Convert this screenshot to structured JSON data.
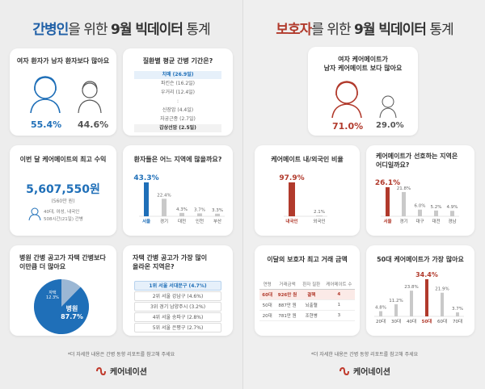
{
  "left": {
    "title_hl": "간병인",
    "title_mid": "을 위한 ",
    "title_bold": "9월 빅데이터",
    "title_end": " 통계",
    "gender_card": {
      "title": "여자 환자가 남자 환자보다 많아요",
      "female_pct": "55.4%",
      "male_pct": "44.6%"
    },
    "period_card": {
      "title": "질환별 평균 간병 기간은?",
      "items": [
        "치매 (26.9일)",
        "파킨슨 (16.2일)",
        "우거리 (12.4일)",
        ":",
        "신장암 (4.4일)",
        "자궁근종 (2.7일)",
        "갑상선암 (2.5일)"
      ]
    },
    "income_card": {
      "title": "이번 달 케어메이트의 최고 수익",
      "amount": "5,607,550원",
      "sub": "(560만 원)",
      "note1": "40대, 여성, 내국인",
      "note2": "508시간(21일) 간병"
    },
    "region_card": {
      "title": "환자들은 어느 지역에 많을까요?",
      "values": [
        43.3,
        22.4,
        4.3,
        3.7,
        3.3
      ],
      "value_labels": [
        "43.3%",
        "22.4%",
        "4.3%",
        "3.7%",
        "3.3%"
      ],
      "categories": [
        "서울",
        "경기",
        "대전",
        "인천",
        "부산"
      ]
    },
    "hospital_card": {
      "title_1": "병원 간병 공고가 자택 간병보다",
      "title_2": "이만큼 더 많아요",
      "home_label": "자택",
      "home_pct": "12.3%",
      "hospital_label": "병원",
      "hospital_pct": "87.7%",
      "hospital_value": 87.7
    },
    "jobs_card": {
      "title_1": "자택 간병 공고가 가장 많이",
      "title_2": "올라온 지역은?",
      "items": [
        "1위 서울 서대문구 (4.7%)",
        "2위 서울 강남구 (4.6%)",
        "3위 경기 남양주시 (3.2%)",
        "4위 서울 송파구 (2.8%)",
        "5위 서울 은평구 (2.7%)"
      ]
    },
    "footnote": "*더 자세한 내용은 간병 동향 리포트를 참고해 주세요",
    "logo": "케어네이션"
  },
  "right": {
    "title_hl": "보호자",
    "title_mid": "를 위한 ",
    "title_bold": "9월 빅데이터",
    "title_end": " 통계",
    "gender_card": {
      "title_1": "여자 케어메이트가",
      "title_2": "남자 케어메이트 보다 많아요",
      "female_pct": "71.0%",
      "male_pct": "29.0%"
    },
    "nationality_card": {
      "title": "케어메이트 내/외국인 비율",
      "values": [
        97.9,
        2.1
      ],
      "value_labels": [
        "97.9%",
        "2.1%"
      ],
      "categories": [
        "내국인",
        "외국인"
      ]
    },
    "prefer_card": {
      "title_1": "케어메이트가 선호하는 지역은",
      "title_2": "어디일까요?",
      "values": [
        26.1,
        21.8,
        6.0,
        5.2,
        4.9
      ],
      "value_labels": [
        "26.1%",
        "21.8%",
        "6.0%",
        "5.2%",
        "4.9%"
      ],
      "categories": [
        "서울",
        "경기",
        "대구",
        "대전",
        "경남"
      ]
    },
    "deal_card": {
      "title": "이달의 보호자 최고 거래 금액",
      "headers": [
        "연령",
        "거래금액",
        "환자 질환",
        "케어메이트 수"
      ],
      "rows": [
        [
          "60대",
          "926만 원",
          "결핵",
          "4"
        ],
        [
          "50대",
          "887만 원",
          "뇌출혈",
          "1"
        ],
        [
          "20대",
          "781만 원",
          "조현병",
          "3"
        ]
      ]
    },
    "age_card": {
      "title": "50대 케어메이트가 가장 많아요",
      "values": [
        4.8,
        11.2,
        23.8,
        34.4,
        21.9,
        3.7
      ],
      "value_labels": [
        "4.8%",
        "11.2%",
        "23.8%",
        "34.4%",
        "21.9%",
        "3.7%"
      ],
      "categories": [
        "20대",
        "30대",
        "40대",
        "50대",
        "60대",
        "70대"
      ]
    },
    "footnote": "*더 자세한 내용은 간병 동향 리포트를 참고해 주세요",
    "logo": "케어네이션"
  },
  "colors": {
    "blue": "#1f6fb8",
    "red": "#b13a2c",
    "bar_grey": "#c9c9c9"
  }
}
